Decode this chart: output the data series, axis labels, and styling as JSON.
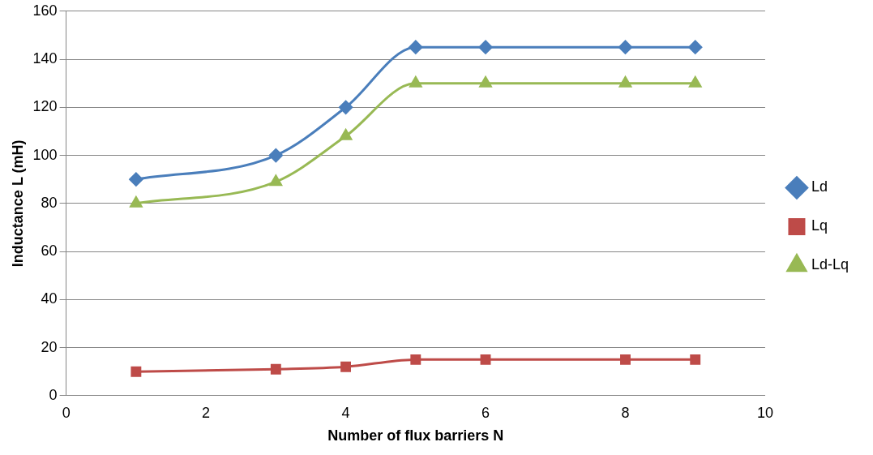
{
  "chart_data": {
    "type": "line",
    "xlabel": "Number of flux barriers N",
    "ylabel": "Inductance L (mH)",
    "xlim": [
      0,
      10
    ],
    "xticks": [
      0,
      2,
      4,
      6,
      8,
      10
    ],
    "ylim": [
      0,
      160
    ],
    "yticks": [
      0,
      20,
      40,
      60,
      80,
      100,
      120,
      140,
      160
    ],
    "grid": "y",
    "legend": "right",
    "line_style": "solid",
    "x": [
      1,
      3,
      4,
      5,
      6,
      8,
      9
    ],
    "series": [
      {
        "name": "Ld",
        "color": "#4a7ebb",
        "marker": "diamond",
        "values": [
          90,
          100,
          120,
          145,
          145,
          145,
          145
        ]
      },
      {
        "name": "Lq",
        "color": "#be4b48",
        "marker": "square",
        "values": [
          10,
          11,
          12,
          15,
          15,
          15,
          15
        ]
      },
      {
        "name": "Ld-Lq",
        "color": "#98b954",
        "marker": "triangle",
        "values": [
          80,
          89,
          108,
          130,
          130,
          130,
          130
        ]
      }
    ]
  }
}
